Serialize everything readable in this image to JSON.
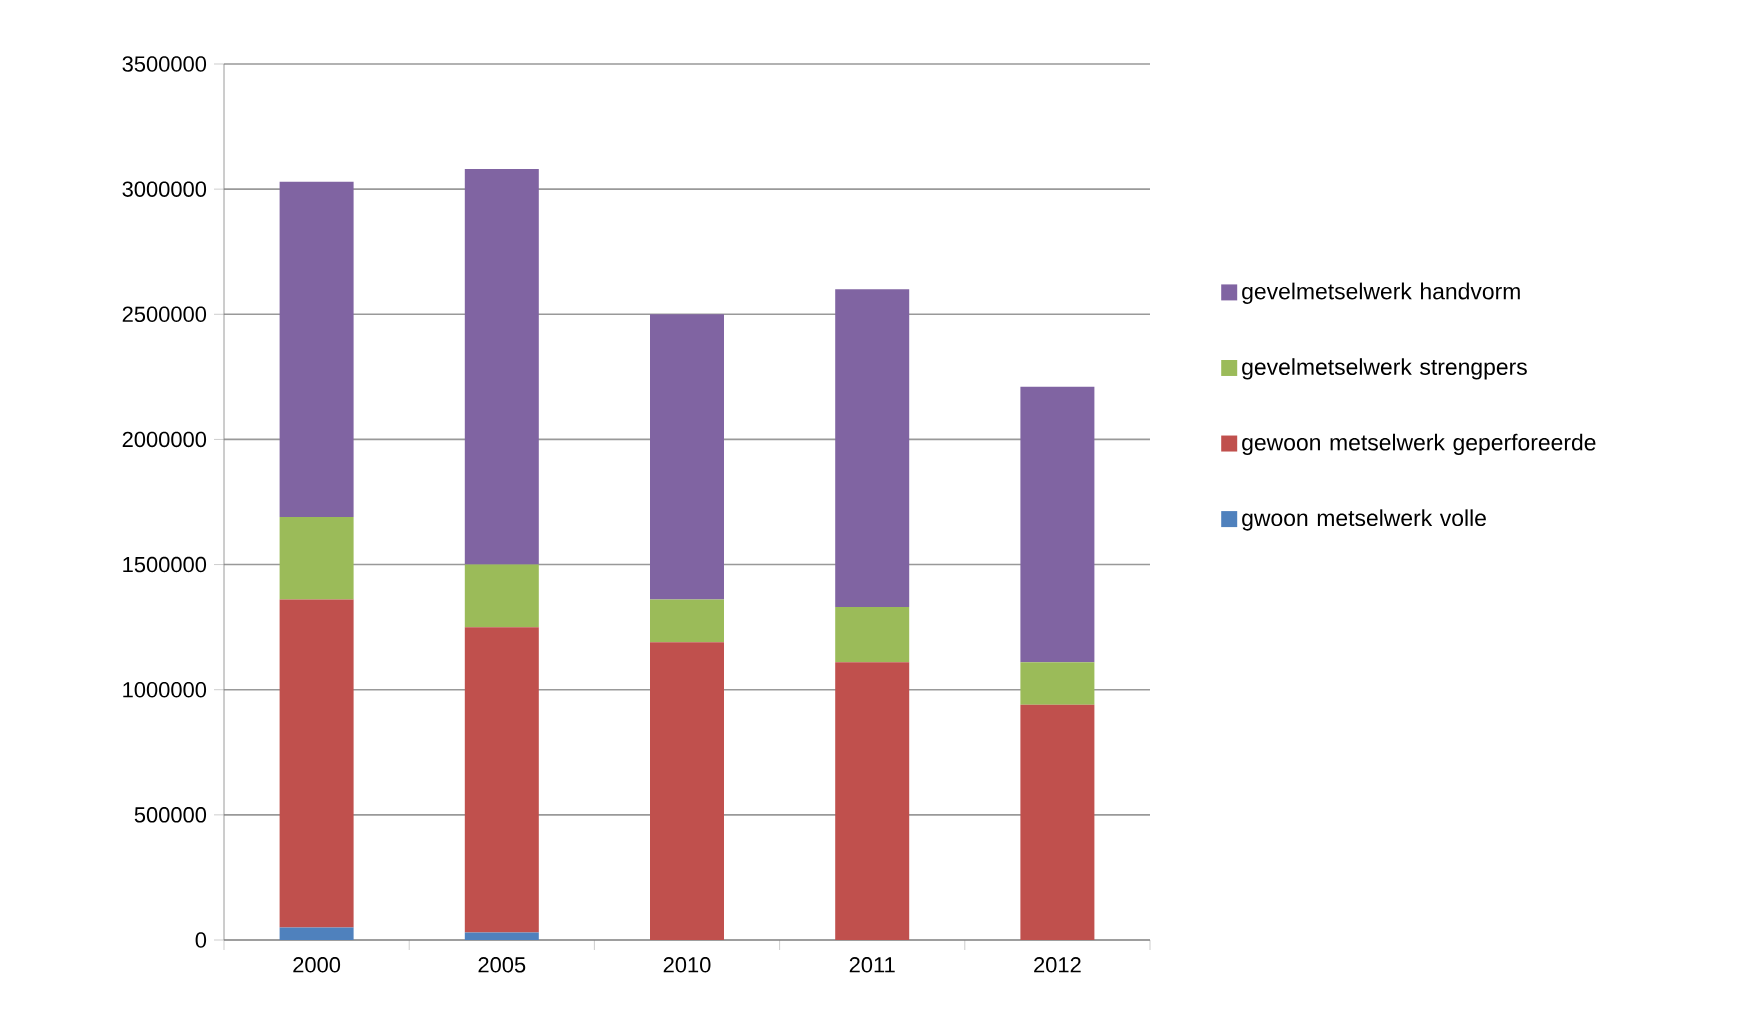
{
  "chart_data": {
    "type": "bar",
    "stacked": true,
    "categories": [
      "2000",
      "2005",
      "2010",
      "2011",
      "2012"
    ],
    "series": [
      {
        "name": "gwoon metselwerk volle",
        "color": "#4f81bd",
        "values": [
          50000,
          30000,
          0,
          0,
          0
        ]
      },
      {
        "name": "gewoon metselwerk geperforeerde",
        "color": "#c0504d",
        "values": [
          1310000,
          1220000,
          1190000,
          1110000,
          940000
        ]
      },
      {
        "name": "gevelmetselwerk strengpers",
        "color": "#9bbb59",
        "values": [
          330000,
          250000,
          170000,
          220000,
          170000
        ]
      },
      {
        "name": "gevelmetselwerk handvorm",
        "color": "#8064a2",
        "values": [
          1340000,
          1580000,
          1140000,
          1270000,
          1100000
        ]
      }
    ],
    "ylim": [
      0,
      3500000
    ],
    "yticks": [
      0,
      500000,
      1000000,
      1500000,
      2000000,
      2500000,
      3000000,
      3500000
    ],
    "grid": "y",
    "legend": "right"
  }
}
